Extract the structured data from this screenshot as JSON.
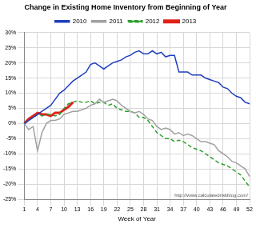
{
  "chart_data": {
    "type": "line",
    "title": "Change in Existing Home Inventory from Beginning of Year",
    "x_label": "Week of Year",
    "annotation": "http://www.calculatedriskblog.com/",
    "categories": [
      "1",
      null,
      null,
      "4",
      null,
      null,
      "7",
      null,
      null,
      "10",
      null,
      null,
      "13",
      null,
      null,
      "16",
      null,
      null,
      "19",
      null,
      null,
      "22",
      null,
      null,
      "25",
      null,
      null,
      "28",
      null,
      null,
      "31",
      null,
      null,
      "34",
      null,
      null,
      "37",
      null,
      null,
      "40",
      null,
      null,
      "43",
      null,
      null,
      "46",
      null,
      null,
      "49",
      null,
      null,
      "52"
    ],
    "series": [
      {
        "name": "2010",
        "color": "#1f3fbf",
        "line_style": "solid",
        "values": [
          0,
          1,
          2,
          3,
          4,
          5,
          6,
          8,
          10,
          11,
          12.5,
          14,
          15,
          16,
          17,
          19.5,
          20,
          19,
          18,
          19,
          20,
          20.5,
          21,
          22,
          22.5,
          23.5,
          24,
          23,
          23,
          24,
          23,
          23.5,
          22,
          22.5,
          22.5,
          17,
          17,
          17,
          16,
          16,
          16,
          15,
          14.5,
          14,
          13.5,
          12,
          11.5,
          10,
          9,
          8.5,
          7,
          6.5
        ]
      },
      {
        "name": "2011",
        "color": "#a0a0a0",
        "line_style": "solid",
        "values": [
          0,
          -2,
          -1,
          -9,
          -3,
          0,
          1,
          1,
          1.5,
          3,
          3.5,
          4,
          4,
          4.5,
          5,
          6,
          6.5,
          8,
          7,
          7.5,
          8,
          7.5,
          6,
          5,
          4,
          3.5,
          4,
          3,
          1.5,
          1,
          -1,
          -2,
          -1.5,
          -2,
          -3.5,
          -3,
          -4,
          -3.5,
          -4,
          -5,
          -6,
          -6,
          -6.5,
          -7,
          -9,
          -10,
          -11,
          -12.5,
          -13,
          -14,
          -15,
          -17.5
        ]
      },
      {
        "name": "2012",
        "color": "#2ca02c",
        "line_style": "dashed",
        "values": [
          0,
          1,
          2,
          3,
          2.5,
          3,
          3,
          2.5,
          3,
          5,
          6.5,
          7,
          7.5,
          7,
          7,
          7.5,
          6.5,
          7,
          7,
          6,
          6.5,
          5,
          4.5,
          4,
          4,
          3.5,
          2,
          2,
          1,
          -1,
          -3,
          -4,
          -5,
          -5,
          -6,
          -5.5,
          -6,
          -7,
          -8,
          -8.5,
          -9,
          -10,
          -11,
          -12,
          -13,
          -13.5,
          -14,
          -15,
          -16,
          -17,
          -19,
          -21
        ]
      },
      {
        "name": "2013",
        "color": "#e0201a",
        "line_style": "solid",
        "values": [
          0,
          1.5,
          2.5,
          3.5,
          3,
          3,
          2.5,
          3.5,
          3.5,
          4.5,
          5.5,
          7,
          null,
          null,
          null,
          null,
          null,
          null,
          null,
          null,
          null,
          null,
          null,
          null,
          null,
          null,
          null,
          null,
          null,
          null,
          null,
          null,
          null,
          null,
          null,
          null,
          null,
          null,
          null,
          null,
          null,
          null,
          null,
          null,
          null,
          null,
          null,
          null,
          null,
          null,
          null,
          null
        ]
      }
    ],
    "ylim": [
      -25,
      30
    ],
    "yticks": [
      {
        "value": -25,
        "label": "-25%"
      },
      {
        "value": -20,
        "label": "-20%"
      },
      {
        "value": -15,
        "label": "-15%"
      },
      {
        "value": -10,
        "label": "-10%"
      },
      {
        "value": -5,
        "label": "-5%"
      },
      {
        "value": 0,
        "label": "0%"
      },
      {
        "value": 5,
        "label": "5%"
      },
      {
        "value": 10,
        "label": "10%"
      },
      {
        "value": 15,
        "label": "15%"
      },
      {
        "value": 20,
        "label": "20%"
      },
      {
        "value": 25,
        "label": "25%"
      },
      {
        "value": 30,
        "label": "30%"
      }
    ],
    "grid": true,
    "legend": "top"
  }
}
